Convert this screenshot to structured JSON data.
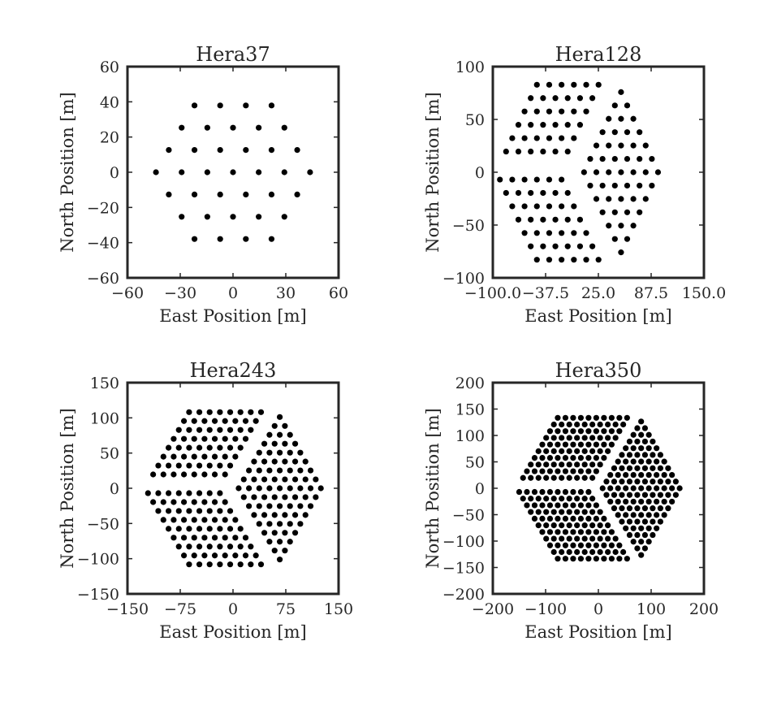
{
  "chart_data": [
    {
      "type": "scatter",
      "title": "Hera37",
      "xlabel": "East Position [m]",
      "ylabel": "North Position [m]",
      "xlim": [
        -60,
        60
      ],
      "ylim": [
        -60,
        60
      ],
      "xticks": [
        "−60",
        "−30",
        "0",
        "30",
        "60"
      ],
      "yticks": [
        "−60",
        "−40",
        "−20",
        "0",
        "20",
        "40",
        "60"
      ],
      "grid": false,
      "legend": "none",
      "marker_color": "#000000",
      "layout": {
        "spacing": 14.6,
        "rows": 7,
        "hex_type": "full"
      }
    },
    {
      "type": "scatter",
      "title": "Hera128",
      "xlabel": "East Position [m]",
      "ylabel": "North Position [m]",
      "xlim": [
        -100,
        150
      ],
      "ylim": [
        -100,
        100
      ],
      "xticks": [
        "−100.0",
        "−37.5",
        "25.0",
        "87.5",
        "150.0"
      ],
      "yticks": [
        "−100",
        "−50",
        "0",
        "50",
        "100"
      ],
      "grid": false,
      "legend": "none",
      "marker_color": "#000000",
      "layout": {
        "spacing": 14.6,
        "rows": 13,
        "hex_type": "split"
      }
    },
    {
      "type": "scatter",
      "title": "Hera243",
      "xlabel": "East Position [m]",
      "ylabel": "North Position [m]",
      "xlim": [
        -150,
        150
      ],
      "ylim": [
        -150,
        150
      ],
      "xticks": [
        "−150",
        "−75",
        "0",
        "75",
        "150"
      ],
      "yticks": [
        "−150",
        "−100",
        "−50",
        "0",
        "50",
        "100",
        "150"
      ],
      "grid": false,
      "legend": "none",
      "marker_color": "#000000",
      "layout": {
        "spacing": 14.6,
        "rows": 17,
        "hex_type": "split"
      }
    },
    {
      "type": "scatter",
      "title": "Hera350",
      "xlabel": "East Position [m]",
      "ylabel": "North Position [m]",
      "xlim": [
        -200,
        200
      ],
      "ylim": [
        -200,
        200
      ],
      "xticks": [
        "−200",
        "−100",
        "0",
        "100",
        "200"
      ],
      "yticks": [
        "−200",
        "−150",
        "−100",
        "−50",
        "0",
        "50",
        "100",
        "150",
        "200"
      ],
      "grid": false,
      "legend": "none",
      "marker_color": "#000000",
      "layout": {
        "spacing": 14.6,
        "rows": 21,
        "hex_type": "split"
      }
    }
  ]
}
